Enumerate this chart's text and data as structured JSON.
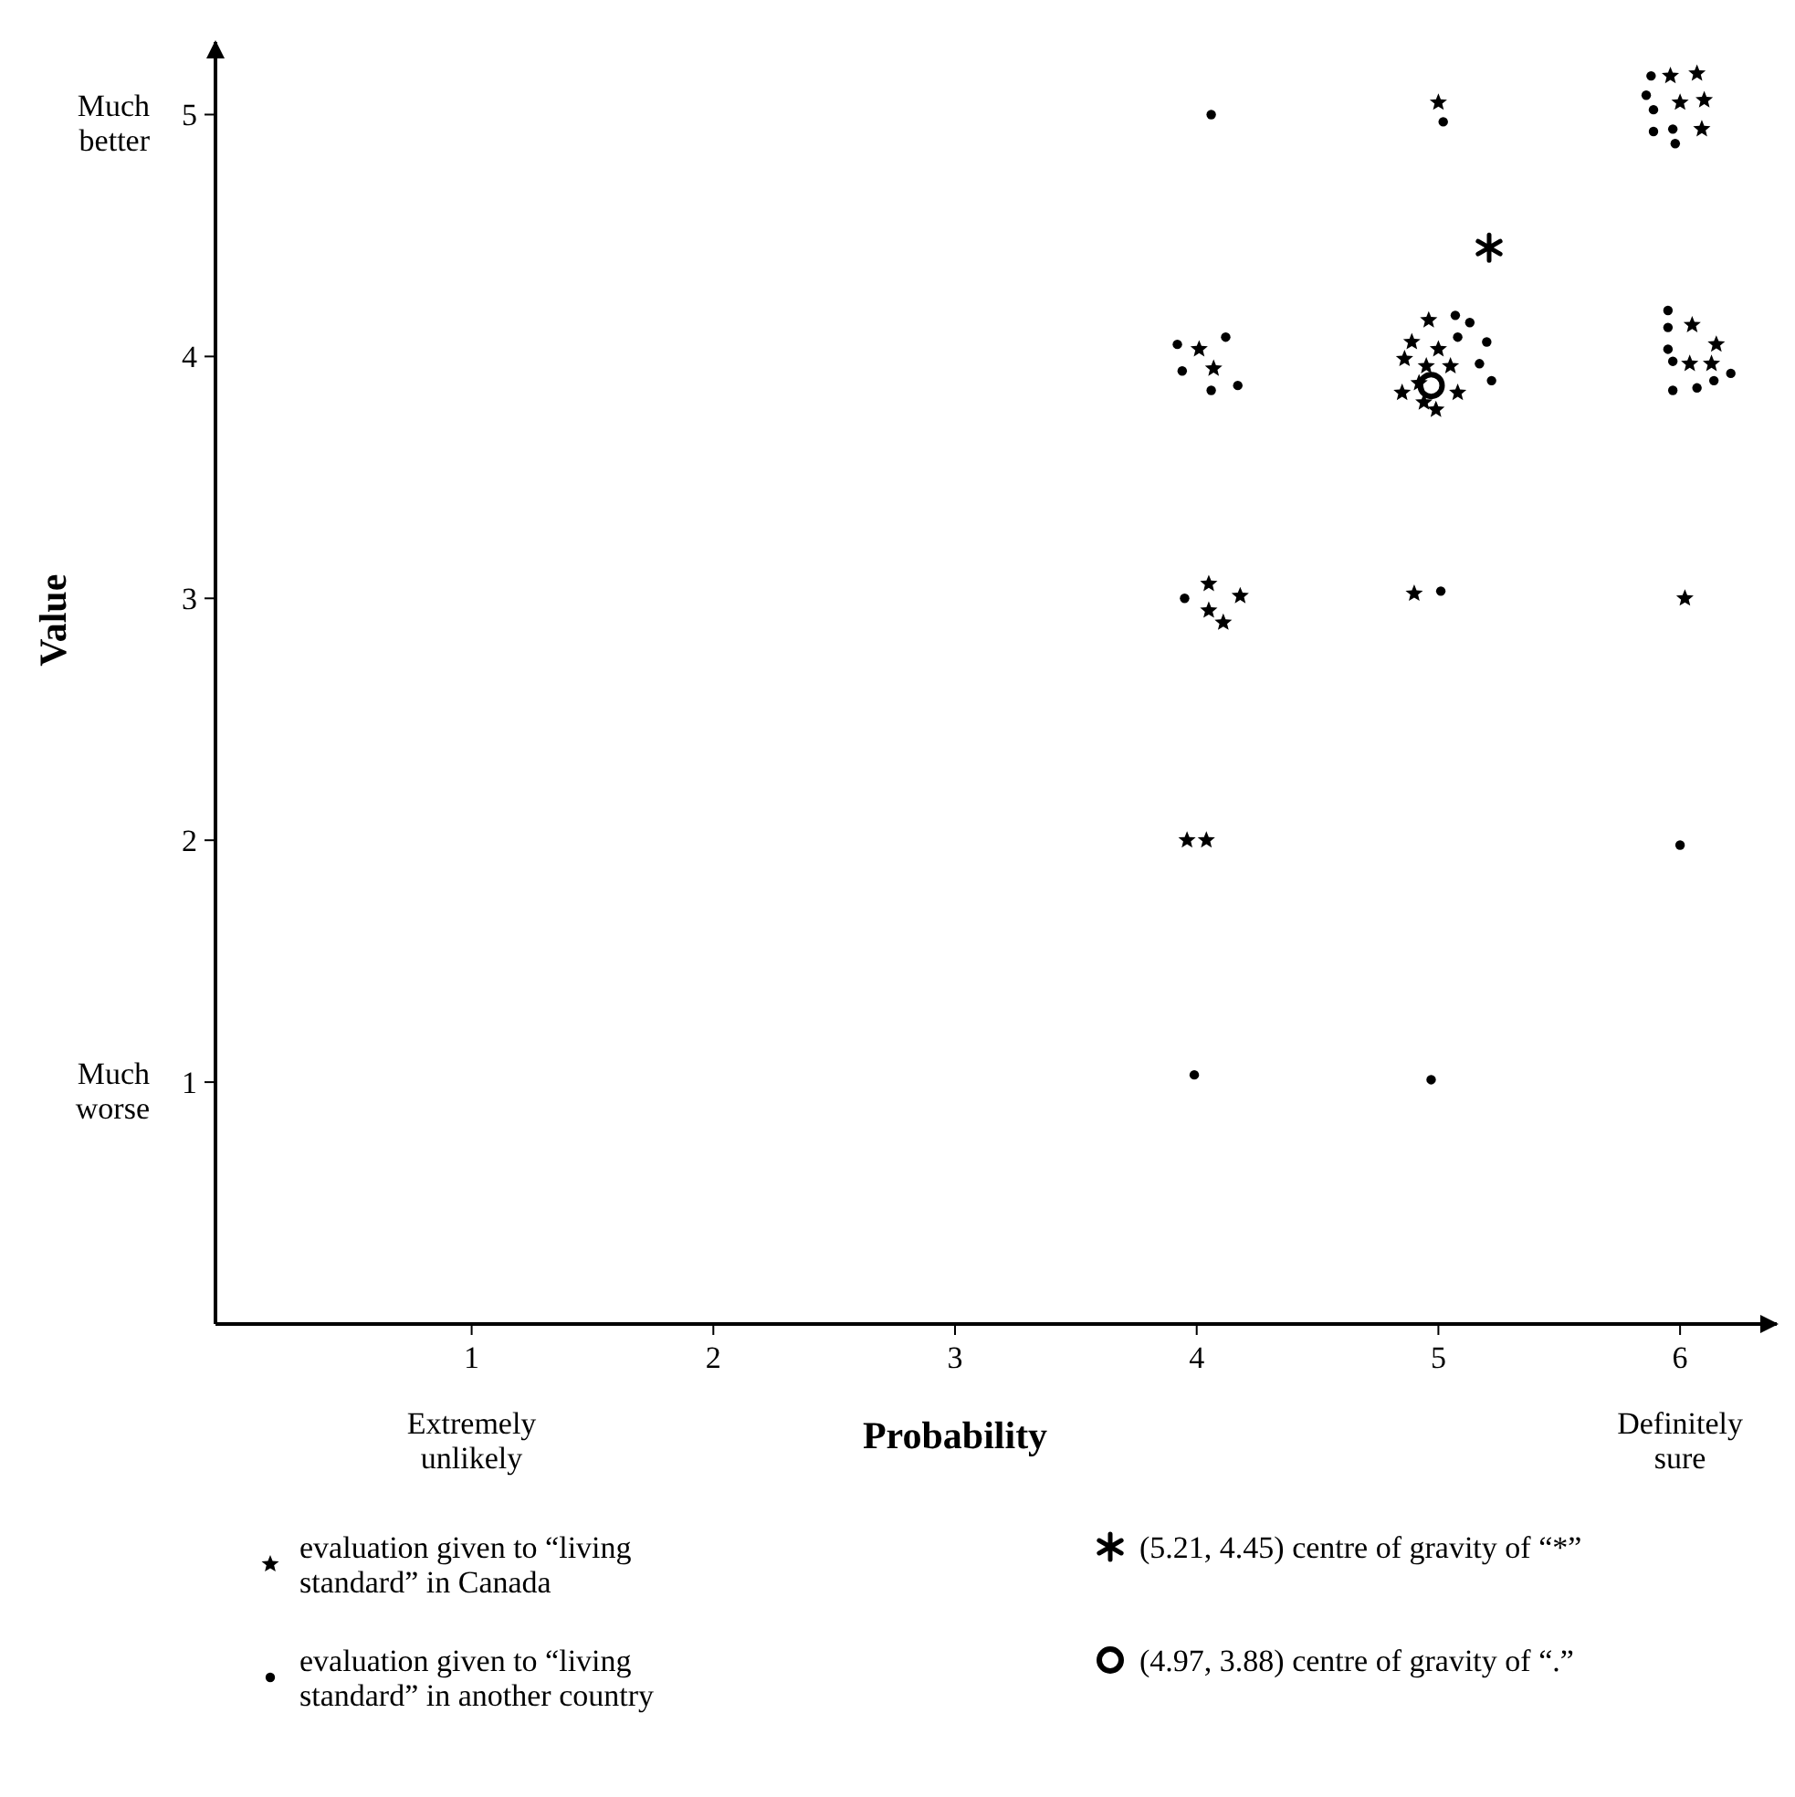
{
  "chart_data": {
    "type": "scatter",
    "xlabel": "Probability",
    "ylabel": "Value",
    "xlim": [
      -0.06,
      6.4
    ],
    "ylim": [
      0,
      5.3
    ],
    "xticks": [
      1,
      2,
      3,
      4,
      5,
      6
    ],
    "yticks": [
      1,
      2,
      3,
      4,
      5
    ],
    "grid": false,
    "legend": "bottom",
    "annotations": [
      "Extremely unlikely",
      "Definitely sure",
      "Much better",
      "Much worse"
    ],
    "series": [
      {
        "name": "evaluation given to “living standard” in Canada",
        "color": "#000000",
        "marker": "star",
        "x": [
          5.0,
          5.96,
          6.07,
          6.0,
          6.1,
          6.09,
          4.01,
          4.07,
          4.96,
          4.89,
          5.0,
          4.95,
          5.05,
          4.86,
          4.92,
          4.85,
          5.08,
          4.94,
          4.99,
          6.05,
          6.15,
          6.04,
          6.13,
          4.05,
          4.18,
          4.05,
          4.11,
          4.9,
          6.02,
          3.96,
          4.04
        ],
        "values": [
          5.05,
          5.16,
          5.17,
          5.05,
          5.06,
          4.94,
          4.03,
          3.95,
          4.15,
          4.06,
          4.03,
          3.96,
          3.96,
          3.99,
          3.89,
          3.85,
          3.85,
          3.81,
          3.78,
          4.13,
          4.05,
          3.97,
          3.97,
          3.06,
          3.01,
          2.95,
          2.9,
          3.02,
          3.0,
          2.0,
          2.0
        ]
      },
      {
        "name": "evaluation given to “living standard” in another country",
        "color": "#000000",
        "marker": "circle",
        "x": [
          4.06,
          5.02,
          5.88,
          5.86,
          5.89,
          5.89,
          5.97,
          5.98,
          3.92,
          4.12,
          3.94,
          4.06,
          4.17,
          5.07,
          5.13,
          5.08,
          5.2,
          5.17,
          5.22,
          5.95,
          5.95,
          5.95,
          5.97,
          5.97,
          6.07,
          6.14,
          6.21,
          3.95,
          5.01,
          6.0,
          3.99,
          4.97
        ],
        "values": [
          5.0,
          4.97,
          5.16,
          5.08,
          5.02,
          4.93,
          4.94,
          4.88,
          4.05,
          4.08,
          3.94,
          3.86,
          3.88,
          4.17,
          4.14,
          4.08,
          4.06,
          3.97,
          3.9,
          4.19,
          4.12,
          4.03,
          3.98,
          3.86,
          3.87,
          3.9,
          3.93,
          3.0,
          3.03,
          1.98,
          1.03,
          1.01
        ]
      },
      {
        "name": "(5.21, 4.45)   centre of gravity of “*”",
        "color": "#000000",
        "marker": "cross",
        "x": [
          5.21
        ],
        "values": [
          4.45
        ]
      },
      {
        "name": "(4.97, 3.88)   centre of gravity of “.”",
        "color": "#000000",
        "marker": "circle",
        "x": [
          4.97
        ],
        "values": [
          3.88
        ]
      }
    ]
  }
}
